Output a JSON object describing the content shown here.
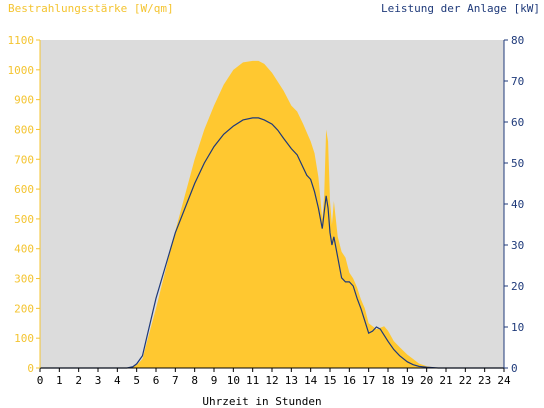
{
  "chart_data": {
    "type": "area",
    "ylabel_left": "Bestrahlungsstärke [W/qm]",
    "ylabel_right": "Leistung der Anlage [kW]",
    "xlabel": "Uhrzeit in Stunden",
    "xlim": [
      0,
      24
    ],
    "ylim_left": [
      0,
      1100
    ],
    "ylim_right": [
      0,
      80
    ],
    "x_ticks": [
      "0",
      "1",
      "2",
      "3",
      "4",
      "5",
      "6",
      "7",
      "8",
      "9",
      "10",
      "11",
      "12",
      "13",
      "14",
      "15",
      "16",
      "17",
      "18",
      "19",
      "20",
      "21",
      "22",
      "23",
      "24"
    ],
    "y_ticks_left": [
      "0",
      "100",
      "200",
      "300",
      "400",
      "500",
      "600",
      "700",
      "800",
      "900",
      "1000",
      "1100"
    ],
    "y_ticks_right": [
      "0",
      "10",
      "20",
      "30",
      "40",
      "50",
      "60",
      "70",
      "80"
    ],
    "grid": false,
    "colors": {
      "plot_bg": "#dcdcdc",
      "irradiance": "#ffc830",
      "power": "#1f3a7a",
      "left_axis": "#f4c430",
      "right_axis": "#1f3a7a"
    },
    "series": [
      {
        "name": "Bestrahlungsstärke",
        "axis": "left",
        "x": [
          0,
          4.5,
          4.8,
          5.0,
          5.3,
          5.5,
          6.0,
          6.5,
          7.0,
          7.5,
          8.0,
          8.5,
          9.0,
          9.5,
          10.0,
          10.5,
          11.0,
          11.3,
          11.6,
          12.0,
          12.3,
          12.6,
          13.0,
          13.3,
          13.6,
          13.8,
          14.0,
          14.2,
          14.4,
          14.6,
          14.7,
          14.8,
          14.9,
          15.0,
          15.1,
          15.2,
          15.4,
          15.6,
          15.8,
          16.0,
          16.2,
          16.4,
          16.6,
          16.8,
          17.0,
          17.2,
          17.4,
          17.6,
          17.8,
          18.0,
          18.3,
          18.6,
          19.0,
          19.3,
          19.6,
          20.0,
          20.3,
          20.6,
          21.0,
          24.0
        ],
        "values": [
          0,
          0,
          5,
          10,
          30,
          80,
          200,
          330,
          460,
          580,
          700,
          800,
          880,
          950,
          1000,
          1025,
          1030,
          1030,
          1020,
          990,
          960,
          930,
          880,
          860,
          820,
          790,
          760,
          720,
          640,
          500,
          580,
          800,
          760,
          560,
          480,
          560,
          440,
          390,
          370,
          320,
          300,
          270,
          230,
          200,
          150,
          140,
          130,
          135,
          140,
          125,
          90,
          70,
          45,
          30,
          15,
          6,
          3,
          0,
          0,
          0
        ]
      },
      {
        "name": "Leistung",
        "axis": "right",
        "x": [
          0,
          4.5,
          4.8,
          5.0,
          5.3,
          5.5,
          6.0,
          6.5,
          7.0,
          7.5,
          8.0,
          8.5,
          9.0,
          9.5,
          10.0,
          10.5,
          11.0,
          11.3,
          11.6,
          12.0,
          12.3,
          12.6,
          13.0,
          13.3,
          13.6,
          13.8,
          14.0,
          14.2,
          14.4,
          14.6,
          14.7,
          14.8,
          14.9,
          15.0,
          15.1,
          15.2,
          15.4,
          15.6,
          15.8,
          16.0,
          16.2,
          16.4,
          16.6,
          16.8,
          17.0,
          17.2,
          17.4,
          17.6,
          17.8,
          18.0,
          18.3,
          18.6,
          19.0,
          19.3,
          19.6,
          20.0,
          20.3,
          20.6,
          21.0,
          24.0
        ],
        "values": [
          0,
          0,
          0.3,
          1,
          3,
          7,
          17,
          25,
          33,
          39,
          45,
          50,
          54,
          57,
          59,
          60.5,
          61,
          61,
          60.5,
          59.5,
          58,
          56,
          53.5,
          52,
          49,
          47,
          46,
          43,
          39,
          34,
          38,
          42,
          39,
          33,
          30,
          32,
          27,
          22,
          21,
          21,
          20,
          17,
          14.5,
          11.5,
          8.5,
          9,
          10,
          9.5,
          8,
          6.5,
          4.5,
          3,
          1.5,
          0.8,
          0.4,
          0.2,
          0.1,
          0,
          0,
          0
        ]
      }
    ]
  }
}
